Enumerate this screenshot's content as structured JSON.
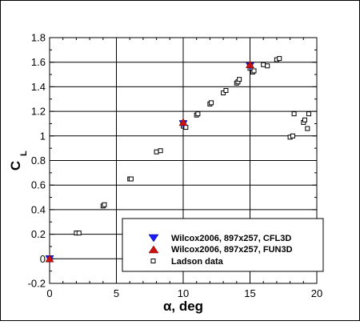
{
  "chart_data": {
    "type": "scatter",
    "xlabel": {
      "symbol": "α",
      "rest": ", deg"
    },
    "ylabel": {
      "main": "C",
      "sub": "L"
    },
    "xlim": [
      0,
      20
    ],
    "ylim": [
      -0.2,
      1.8
    ],
    "xticks": [
      0,
      5,
      10,
      15,
      20
    ],
    "xtick_labels": [
      "0",
      "5",
      "10",
      "15",
      "20"
    ],
    "yticks": [
      -0.2,
      0,
      0.2,
      0.4,
      0.6,
      0.8,
      1.0,
      1.2,
      1.4,
      1.6,
      1.8
    ],
    "ytick_labels": [
      "-0.2",
      "0",
      "0.2",
      "0.4",
      "0.6",
      "0.8",
      "1",
      "1.2",
      "1.4",
      "1.6",
      "1.8"
    ],
    "grid": true,
    "legend_position": "bottom-right",
    "series": [
      {
        "name": "Wilcox2006, 897x257, CFL3D",
        "marker": "triangle-down",
        "color": "#1a1aff",
        "x": [
          0,
          10,
          15
        ],
        "y": [
          0,
          1.1,
          1.57
        ]
      },
      {
        "name": "Wilcox2006, 897x257, FUN3D",
        "marker": "triangle-up",
        "color": "#cc1111",
        "x": [
          0,
          10,
          15
        ],
        "y": [
          0,
          1.11,
          1.58
        ]
      },
      {
        "name": "Ladson data",
        "marker": "square-open",
        "color": "#000000",
        "x": [
          0,
          2.0,
          2.2,
          4.0,
          4.1,
          6.0,
          6.1,
          8.0,
          8.3,
          10.0,
          10.2,
          11.0,
          11.1,
          12.0,
          12.1,
          13.0,
          13.2,
          14.0,
          14.1,
          14.2,
          15.0,
          15.2,
          15.3,
          16.0,
          16.3,
          17.0,
          17.2,
          18.0,
          18.2,
          18.3,
          19.0,
          19.1,
          19.3,
          19.4
        ],
        "y": [
          0,
          0.21,
          0.21,
          0.43,
          0.44,
          0.65,
          0.65,
          0.87,
          0.88,
          1.08,
          1.07,
          1.17,
          1.18,
          1.26,
          1.27,
          1.35,
          1.37,
          1.43,
          1.44,
          1.46,
          1.55,
          1.52,
          1.53,
          1.58,
          1.57,
          1.62,
          1.63,
          0.99,
          1.0,
          1.18,
          1.11,
          1.13,
          1.06,
          1.18
        ]
      }
    ]
  }
}
